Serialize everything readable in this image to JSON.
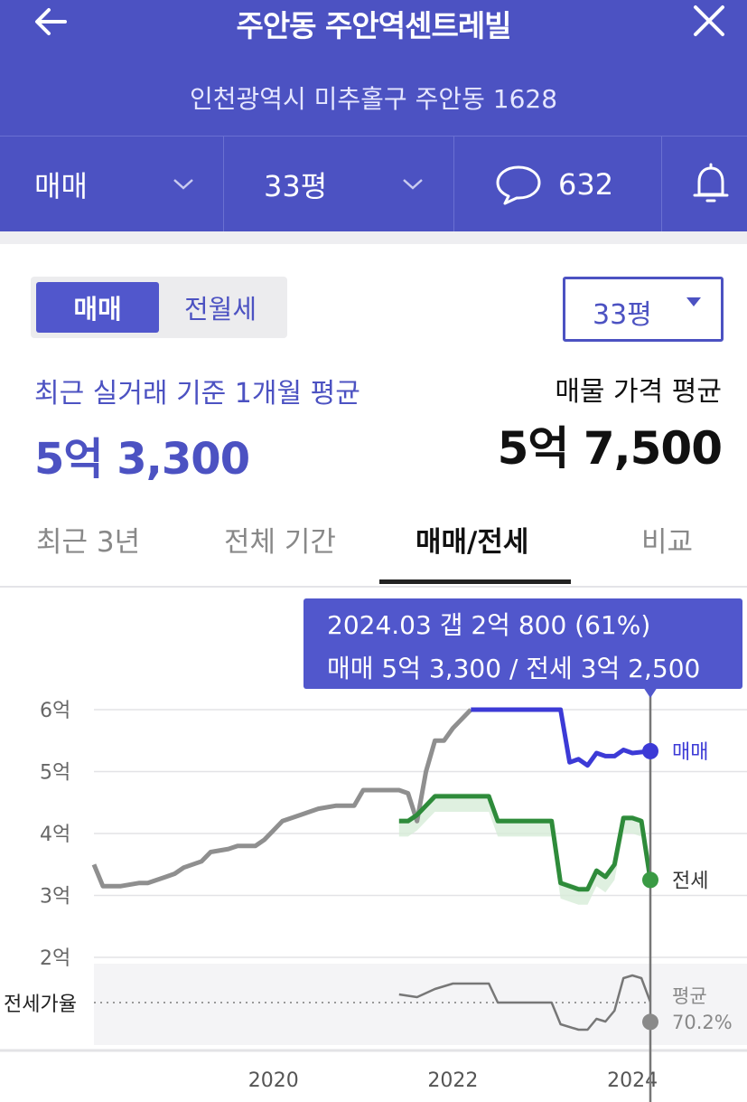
{
  "header": {
    "title": "주안동 주안역센트레빌",
    "address": "인천광역시 미추홀구 주안동 1628"
  },
  "options": {
    "trade_type": "매매",
    "area": "33평",
    "comments_count": "632"
  },
  "toggle": {
    "selected": "매매",
    "other": "전월세"
  },
  "area_select": "33평",
  "summary": {
    "recent_label": "최근 실거래 기준 1개월 평균",
    "recent_price": "5억 3,300",
    "listing_label": "매물 가격 평균",
    "listing_price": "5억 7,500"
  },
  "tabs": [
    "최근 3년",
    "전체 기간",
    "매매/전세",
    "비교"
  ],
  "active_tab": "매매/전세",
  "tooltip": {
    "line1": "2024.03  갭 2억 800 (61%)",
    "line2": "매매 5억 3,300 / 전세 3억 2,500"
  },
  "colors": {
    "brand": "#4c52c2",
    "sale": "#3c3ad6",
    "jeonse": "#2e8b3a",
    "history": "#8f8f8f"
  },
  "chart_data": {
    "type": "line",
    "y_tick_labels": [
      "6억",
      "5억",
      "4억",
      "3억",
      "2억"
    ],
    "x_tick_labels": [
      "2020",
      "2022",
      "2024"
    ],
    "ratio_label": "전세가율",
    "series": [
      {
        "name": "매매",
        "values": [
          [
            2018.0,
            3.5
          ],
          [
            2018.1,
            3.15
          ],
          [
            2018.3,
            3.15
          ],
          [
            2018.5,
            3.2
          ],
          [
            2018.6,
            3.2
          ],
          [
            2018.8,
            3.3
          ],
          [
            2018.9,
            3.35
          ],
          [
            2019.0,
            3.45
          ],
          [
            2019.2,
            3.55
          ],
          [
            2019.3,
            3.7
          ],
          [
            2019.5,
            3.75
          ],
          [
            2019.6,
            3.8
          ],
          [
            2019.8,
            3.8
          ],
          [
            2019.9,
            3.9
          ],
          [
            2020.0,
            4.05
          ],
          [
            2020.1,
            4.2
          ],
          [
            2020.3,
            4.3
          ],
          [
            2020.5,
            4.4
          ],
          [
            2020.7,
            4.45
          ],
          [
            2020.9,
            4.45
          ],
          [
            2021.0,
            4.7
          ],
          [
            2021.2,
            4.7
          ],
          [
            2021.4,
            4.7
          ],
          [
            2021.5,
            4.65
          ],
          [
            2021.6,
            4.2
          ],
          [
            2021.7,
            5.0
          ],
          [
            2021.8,
            5.5
          ],
          [
            2021.9,
            5.5
          ],
          [
            2022.0,
            5.7
          ],
          [
            2022.2,
            6.0
          ],
          [
            2022.5,
            6.0
          ],
          [
            2022.8,
            6.0
          ],
          [
            2023.0,
            6.0
          ],
          [
            2023.2,
            6.0
          ],
          [
            2023.3,
            5.15
          ],
          [
            2023.4,
            5.2
          ],
          [
            2023.5,
            5.1
          ],
          [
            2023.6,
            5.3
          ],
          [
            2023.7,
            5.25
          ],
          [
            2023.8,
            5.25
          ],
          [
            2023.9,
            5.35
          ],
          [
            2024.0,
            5.3
          ],
          [
            2024.2,
            5.33
          ]
        ]
      },
      {
        "name": "전세",
        "values": [
          [
            2021.4,
            4.2
          ],
          [
            2021.5,
            4.2
          ],
          [
            2021.6,
            4.3
          ],
          [
            2021.8,
            4.6
          ],
          [
            2022.0,
            4.6
          ],
          [
            2022.2,
            4.6
          ],
          [
            2022.4,
            4.6
          ],
          [
            2022.5,
            4.2
          ],
          [
            2022.7,
            4.2
          ],
          [
            2022.9,
            4.2
          ],
          [
            2023.0,
            4.2
          ],
          [
            2023.1,
            4.2
          ],
          [
            2023.2,
            3.2
          ],
          [
            2023.4,
            3.1
          ],
          [
            2023.5,
            3.1
          ],
          [
            2023.6,
            3.4
          ],
          [
            2023.7,
            3.3
          ],
          [
            2023.8,
            3.5
          ],
          [
            2023.9,
            4.25
          ],
          [
            2024.0,
            4.25
          ],
          [
            2024.1,
            4.2
          ],
          [
            2024.2,
            3.25
          ]
        ]
      },
      {
        "name": "평균",
        "values": [
          [
            2021.4,
            0.73
          ],
          [
            2021.6,
            0.72
          ],
          [
            2021.8,
            0.75
          ],
          [
            2022.0,
            0.77
          ],
          [
            2022.2,
            0.77
          ],
          [
            2022.4,
            0.77
          ],
          [
            2022.5,
            0.7
          ],
          [
            2022.8,
            0.7
          ],
          [
            2023.0,
            0.7
          ],
          [
            2023.1,
            0.7
          ],
          [
            2023.2,
            0.62
          ],
          [
            2023.4,
            0.6
          ],
          [
            2023.5,
            0.6
          ],
          [
            2023.6,
            0.64
          ],
          [
            2023.7,
            0.63
          ],
          [
            2023.8,
            0.67
          ],
          [
            2023.9,
            0.79
          ],
          [
            2024.0,
            0.8
          ],
          [
            2024.1,
            0.79
          ],
          [
            2024.2,
            0.702
          ]
        ]
      }
    ],
    "end_labels": {
      "sale": "매매",
      "jeonse": "전세",
      "average": "평균",
      "average_value": "70.2%"
    },
    "ylim": [
      2,
      6
    ],
    "xlim": [
      2018.0,
      2024.4
    ]
  }
}
